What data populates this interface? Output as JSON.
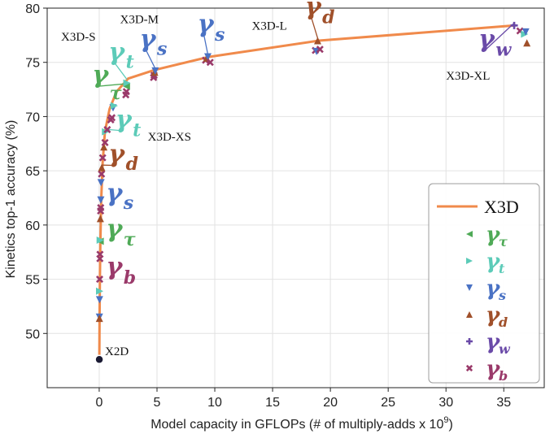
{
  "chart_data": {
    "type": "line",
    "xlabel": "Model capacity in GFLOPs (# of multiply-adds x 10",
    "xlabel_sup": "9",
    "xlabel_end": ")",
    "ylabel": "Kinetics top-1 accuracy (%)",
    "xlim": [
      -4.5,
      38.5
    ],
    "ylim": [
      45,
      80
    ],
    "xticks": [
      0,
      5,
      10,
      15,
      20,
      25,
      30,
      35
    ],
    "yticks": [
      50,
      55,
      60,
      65,
      70,
      75,
      80
    ],
    "grid": true,
    "legend_position": "bottom-right",
    "colors": {
      "X3D": "#f08a4b",
      "tau": "#4faa57",
      "t": "#5ccbb8",
      "s": "#4a72c4",
      "d": "#a0502a",
      "w": "#6a4aa8",
      "b": "#9a3a6a",
      "x2d": "#1a1a33"
    },
    "x3d_curve": {
      "name": "X3D",
      "points": [
        [
          0.01,
          47.6
        ],
        [
          0.03,
          51.5
        ],
        [
          0.06,
          55
        ],
        [
          0.1,
          58.5
        ],
        [
          0.18,
          62.5
        ],
        [
          0.3,
          65.8
        ],
        [
          0.5,
          68.6
        ],
        [
          0.9,
          70.7
        ],
        [
          1.5,
          72.3
        ],
        [
          2.5,
          73.5
        ],
        [
          4.8,
          74.3
        ],
        [
          9.5,
          75.5
        ],
        [
          19,
          77
        ],
        [
          36,
          78.4
        ]
      ]
    },
    "markers": [
      {
        "x": 0.01,
        "y": 47.6,
        "kind": "x2d"
      },
      {
        "x": 0.02,
        "y": 51.5,
        "kind": "s"
      },
      {
        "x": 0.02,
        "y": 51.4,
        "kind": "d"
      },
      {
        "x": 0.03,
        "y": 53.1,
        "kind": "s"
      },
      {
        "x": 0.04,
        "y": 53.9,
        "kind": "t"
      },
      {
        "x": 0.04,
        "y": 55.0,
        "kind": "b"
      },
      {
        "x": 0.06,
        "y": 56.9,
        "kind": "b"
      },
      {
        "x": 0.07,
        "y": 57.3,
        "kind": "b"
      },
      {
        "x": 0.08,
        "y": 58.5,
        "kind": "tau"
      },
      {
        "x": 0.09,
        "y": 58.6,
        "kind": "t"
      },
      {
        "x": 0.1,
        "y": 60.6,
        "kind": "d"
      },
      {
        "x": 0.12,
        "y": 61.3,
        "kind": "b"
      },
      {
        "x": 0.13,
        "y": 61.6,
        "kind": "b"
      },
      {
        "x": 0.14,
        "y": 62.3,
        "kind": "s"
      },
      {
        "x": 0.16,
        "y": 63.9,
        "kind": "s"
      },
      {
        "x": 0.2,
        "y": 64.7,
        "kind": "b"
      },
      {
        "x": 0.22,
        "y": 65.3,
        "kind": "d"
      },
      {
        "x": 0.3,
        "y": 66.2,
        "kind": "b"
      },
      {
        "x": 0.4,
        "y": 67.2,
        "kind": "d"
      },
      {
        "x": 0.5,
        "y": 67.6,
        "kind": "b"
      },
      {
        "x": 0.55,
        "y": 68.6,
        "kind": "t"
      },
      {
        "x": 0.7,
        "y": 68.8,
        "kind": "b"
      },
      {
        "x": 1.0,
        "y": 69.7,
        "kind": "b"
      },
      {
        "x": 1.1,
        "y": 69.9,
        "kind": "b"
      },
      {
        "x": 1.2,
        "y": 70.8,
        "kind": "s"
      },
      {
        "x": 1.3,
        "y": 71.0,
        "kind": "t"
      },
      {
        "x": 2.3,
        "y": 72.0,
        "kind": "b"
      },
      {
        "x": 2.35,
        "y": 72.3,
        "kind": "b"
      },
      {
        "x": 2.35,
        "y": 72.8,
        "kind": "tau"
      },
      {
        "x": 2.4,
        "y": 73.1,
        "kind": "t"
      },
      {
        "x": 4.7,
        "y": 73.6,
        "kind": "b"
      },
      {
        "x": 4.75,
        "y": 73.8,
        "kind": "b"
      },
      {
        "x": 4.8,
        "y": 74.1,
        "kind": "d"
      },
      {
        "x": 4.85,
        "y": 74.2,
        "kind": "s"
      },
      {
        "x": 9.2,
        "y": 75.2,
        "kind": "b"
      },
      {
        "x": 9.3,
        "y": 75.4,
        "kind": "d"
      },
      {
        "x": 9.4,
        "y": 75.5,
        "kind": "s"
      },
      {
        "x": 9.6,
        "y": 75.0,
        "kind": "b"
      },
      {
        "x": 18.7,
        "y": 76.1,
        "kind": "b"
      },
      {
        "x": 18.8,
        "y": 76.0,
        "kind": "s"
      },
      {
        "x": 18.9,
        "y": 77.0,
        "kind": "d"
      },
      {
        "x": 19.1,
        "y": 76.2,
        "kind": "b"
      },
      {
        "x": 35.9,
        "y": 78.4,
        "kind": "w"
      },
      {
        "x": 36.4,
        "y": 77.9,
        "kind": "b"
      },
      {
        "x": 36.8,
        "y": 77.6,
        "kind": "t"
      },
      {
        "x": 36.9,
        "y": 77.8,
        "kind": "s"
      },
      {
        "x": 37.0,
        "y": 76.8,
        "kind": "d"
      }
    ],
    "model_labels": [
      {
        "text": "X2D",
        "x": 0.5,
        "y": 48.0
      },
      {
        "text": "X3D-S",
        "x": -3.3,
        "y": 77.0
      },
      {
        "text": "X3D-M",
        "x": 1.8,
        "y": 78.6
      },
      {
        "text": "X3D-XS",
        "x": 4.2,
        "y": 67.8
      },
      {
        "text": "X3D-L",
        "x": 13.2,
        "y": 78.0
      },
      {
        "text": "X3D-XL",
        "x": 30.0,
        "y": 73.4
      }
    ],
    "gamma_labels": [
      {
        "kind": "tau",
        "x": -0.6,
        "y": 73.1,
        "lx": 0.9,
        "ly": 71.6,
        "ax": 2.3,
        "ay": 72.8
      },
      {
        "kind": "t",
        "x": 0.8,
        "y": 75.2,
        "lx": 2.3,
        "ly": 74.5,
        "ax": 2.4,
        "ay": 73.2
      },
      {
        "kind": "s",
        "x": 3.5,
        "y": 76.4,
        "lx": 5.0,
        "ly": 75.7,
        "ax": 4.85,
        "ay": 74.2
      },
      {
        "kind": "s",
        "x": 8.5,
        "y": 77.8,
        "lx": 10.0,
        "ly": 77.0,
        "ax": 9.4,
        "ay": 75.5
      },
      {
        "kind": "d",
        "x": 17.8,
        "y": 79.4,
        "lx": 19.3,
        "ly": 78.6,
        "ax": 18.9,
        "ay": 77.0
      },
      {
        "kind": "w",
        "x": 32.8,
        "y": 76.4,
        "lx": 34.3,
        "ly": 75.6,
        "ax": 35.9,
        "ay": 78.4
      },
      {
        "kind": "t",
        "x": 1.4,
        "y": 69.0,
        "lx": 2.9,
        "ly": 68.2,
        "ax": 0.55,
        "ay": 68.6
      },
      {
        "kind": "d",
        "x": 0.8,
        "y": 65.8,
        "lx": 2.3,
        "ly": 65.1,
        "ax": 0.22,
        "ay": 65.3
      },
      {
        "kind": "s",
        "x": 0.6,
        "y": 62.2,
        "lx": 2.1,
        "ly": 61.5,
        "ax": null,
        "ay": null
      },
      {
        "kind": "tau",
        "x": 0.6,
        "y": 58.9,
        "lx": 2.1,
        "ly": 58.1,
        "ax": null,
        "ay": null
      },
      {
        "kind": "b",
        "x": 0.6,
        "y": 55.4,
        "lx": 2.1,
        "ly": 54.6,
        "ax": null,
        "ay": null
      }
    ],
    "legend": {
      "title": "X3D",
      "entries": [
        {
          "kind": "tau",
          "symbol": "◀",
          "label": "γ",
          "sub": "τ"
        },
        {
          "kind": "t",
          "symbol": "▶",
          "label": "γ",
          "sub": "t"
        },
        {
          "kind": "s",
          "symbol": "▼",
          "label": "γ",
          "sub": "s"
        },
        {
          "kind": "d",
          "symbol": "▲",
          "label": "γ",
          "sub": "d"
        },
        {
          "kind": "w",
          "symbol": "✚",
          "label": "γ",
          "sub": "w"
        },
        {
          "kind": "b",
          "symbol": "✖",
          "label": "γ",
          "sub": "b"
        }
      ]
    }
  }
}
